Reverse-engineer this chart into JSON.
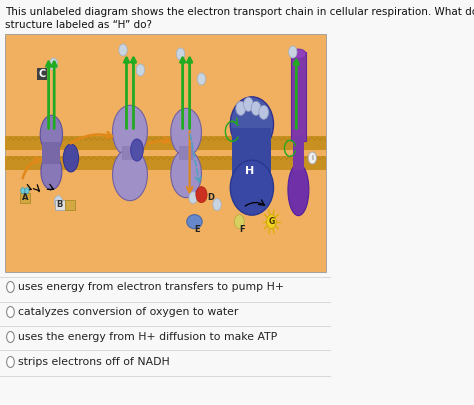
{
  "question_line1": "This unlabeled diagram shows the electron transport chain in cellular respiration. What does the",
  "question_line2": "structure labeled as “H” do?",
  "options": [
    "uses energy from electron transfers to pump H+",
    "catalyzes conversion of oxygen to water",
    "uses the energy from H+ diffusion to make ATP",
    "strips electrons off of NADH"
  ],
  "bg_color": "#f8f8f8",
  "diagram_bg_top": "#f0b860",
  "diagram_bg_bot": "#e8c070",
  "text_color": "#111111",
  "option_text_color": "#222222",
  "divider_color": "#cccccc",
  "question_fontsize": 7.5,
  "option_fontsize": 7.8,
  "green_arrow_color": "#22aa22",
  "orange_arrow_color": "#e08818",
  "membrane_color1": "#c8980c",
  "membrane_color2": "#b88808",
  "complex1_color": "#8878b8",
  "complex2_color": "#a090c8",
  "complex3_color": "#a090c8",
  "complex4_color": "#4858a8",
  "atp_color": "#8040a8",
  "dark_blob_color": "#4848a0",
  "sphere_color": "#c8d4e0",
  "sphere_edge": "#a0b0c8"
}
